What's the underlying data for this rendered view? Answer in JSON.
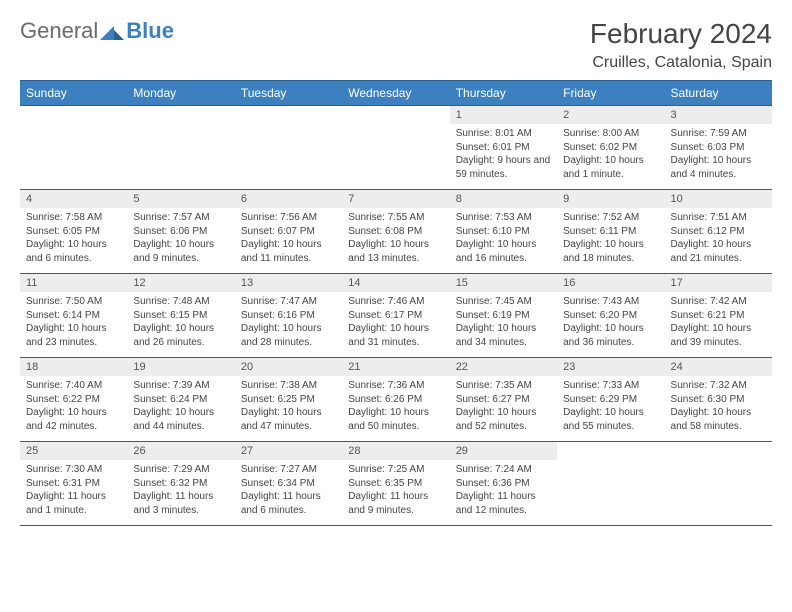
{
  "brand": {
    "name1": "General",
    "name2": "Blue"
  },
  "title": "February 2024",
  "location": "Cruilles, Catalonia, Spain",
  "daysOfWeek": [
    "Sunday",
    "Monday",
    "Tuesday",
    "Wednesday",
    "Thursday",
    "Friday",
    "Saturday"
  ],
  "colors": {
    "header_bg": "#3c80c0",
    "header_text": "#ffffff",
    "rule": "#2b5f8e",
    "daynum_bg": "#ededed",
    "body_text": "#444444",
    "logo_gray": "#6a6a6a",
    "logo_blue": "#3c80c0",
    "page_bg": "#ffffff"
  },
  "typography": {
    "month_title_pt": 28,
    "location_pt": 16,
    "dow_pt": 12,
    "daynum_pt": 11,
    "detail_pt": 10,
    "logo_pt": 22
  },
  "weeks": [
    [
      null,
      null,
      null,
      null,
      {
        "n": "1",
        "sunrise": "8:01 AM",
        "sunset": "6:01 PM",
        "daylight": "9 hours and 59 minutes."
      },
      {
        "n": "2",
        "sunrise": "8:00 AM",
        "sunset": "6:02 PM",
        "daylight": "10 hours and 1 minute."
      },
      {
        "n": "3",
        "sunrise": "7:59 AM",
        "sunset": "6:03 PM",
        "daylight": "10 hours and 4 minutes."
      }
    ],
    [
      {
        "n": "4",
        "sunrise": "7:58 AM",
        "sunset": "6:05 PM",
        "daylight": "10 hours and 6 minutes."
      },
      {
        "n": "5",
        "sunrise": "7:57 AM",
        "sunset": "6:06 PM",
        "daylight": "10 hours and 9 minutes."
      },
      {
        "n": "6",
        "sunrise": "7:56 AM",
        "sunset": "6:07 PM",
        "daylight": "10 hours and 11 minutes."
      },
      {
        "n": "7",
        "sunrise": "7:55 AM",
        "sunset": "6:08 PM",
        "daylight": "10 hours and 13 minutes."
      },
      {
        "n": "8",
        "sunrise": "7:53 AM",
        "sunset": "6:10 PM",
        "daylight": "10 hours and 16 minutes."
      },
      {
        "n": "9",
        "sunrise": "7:52 AM",
        "sunset": "6:11 PM",
        "daylight": "10 hours and 18 minutes."
      },
      {
        "n": "10",
        "sunrise": "7:51 AM",
        "sunset": "6:12 PM",
        "daylight": "10 hours and 21 minutes."
      }
    ],
    [
      {
        "n": "11",
        "sunrise": "7:50 AM",
        "sunset": "6:14 PM",
        "daylight": "10 hours and 23 minutes."
      },
      {
        "n": "12",
        "sunrise": "7:48 AM",
        "sunset": "6:15 PM",
        "daylight": "10 hours and 26 minutes."
      },
      {
        "n": "13",
        "sunrise": "7:47 AM",
        "sunset": "6:16 PM",
        "daylight": "10 hours and 28 minutes."
      },
      {
        "n": "14",
        "sunrise": "7:46 AM",
        "sunset": "6:17 PM",
        "daylight": "10 hours and 31 minutes."
      },
      {
        "n": "15",
        "sunrise": "7:45 AM",
        "sunset": "6:19 PM",
        "daylight": "10 hours and 34 minutes."
      },
      {
        "n": "16",
        "sunrise": "7:43 AM",
        "sunset": "6:20 PM",
        "daylight": "10 hours and 36 minutes."
      },
      {
        "n": "17",
        "sunrise": "7:42 AM",
        "sunset": "6:21 PM",
        "daylight": "10 hours and 39 minutes."
      }
    ],
    [
      {
        "n": "18",
        "sunrise": "7:40 AM",
        "sunset": "6:22 PM",
        "daylight": "10 hours and 42 minutes."
      },
      {
        "n": "19",
        "sunrise": "7:39 AM",
        "sunset": "6:24 PM",
        "daylight": "10 hours and 44 minutes."
      },
      {
        "n": "20",
        "sunrise": "7:38 AM",
        "sunset": "6:25 PM",
        "daylight": "10 hours and 47 minutes."
      },
      {
        "n": "21",
        "sunrise": "7:36 AM",
        "sunset": "6:26 PM",
        "daylight": "10 hours and 50 minutes."
      },
      {
        "n": "22",
        "sunrise": "7:35 AM",
        "sunset": "6:27 PM",
        "daylight": "10 hours and 52 minutes."
      },
      {
        "n": "23",
        "sunrise": "7:33 AM",
        "sunset": "6:29 PM",
        "daylight": "10 hours and 55 minutes."
      },
      {
        "n": "24",
        "sunrise": "7:32 AM",
        "sunset": "6:30 PM",
        "daylight": "10 hours and 58 minutes."
      }
    ],
    [
      {
        "n": "25",
        "sunrise": "7:30 AM",
        "sunset": "6:31 PM",
        "daylight": "11 hours and 1 minute."
      },
      {
        "n": "26",
        "sunrise": "7:29 AM",
        "sunset": "6:32 PM",
        "daylight": "11 hours and 3 minutes."
      },
      {
        "n": "27",
        "sunrise": "7:27 AM",
        "sunset": "6:34 PM",
        "daylight": "11 hours and 6 minutes."
      },
      {
        "n": "28",
        "sunrise": "7:25 AM",
        "sunset": "6:35 PM",
        "daylight": "11 hours and 9 minutes."
      },
      {
        "n": "29",
        "sunrise": "7:24 AM",
        "sunset": "6:36 PM",
        "daylight": "11 hours and 12 minutes."
      },
      null,
      null
    ]
  ]
}
